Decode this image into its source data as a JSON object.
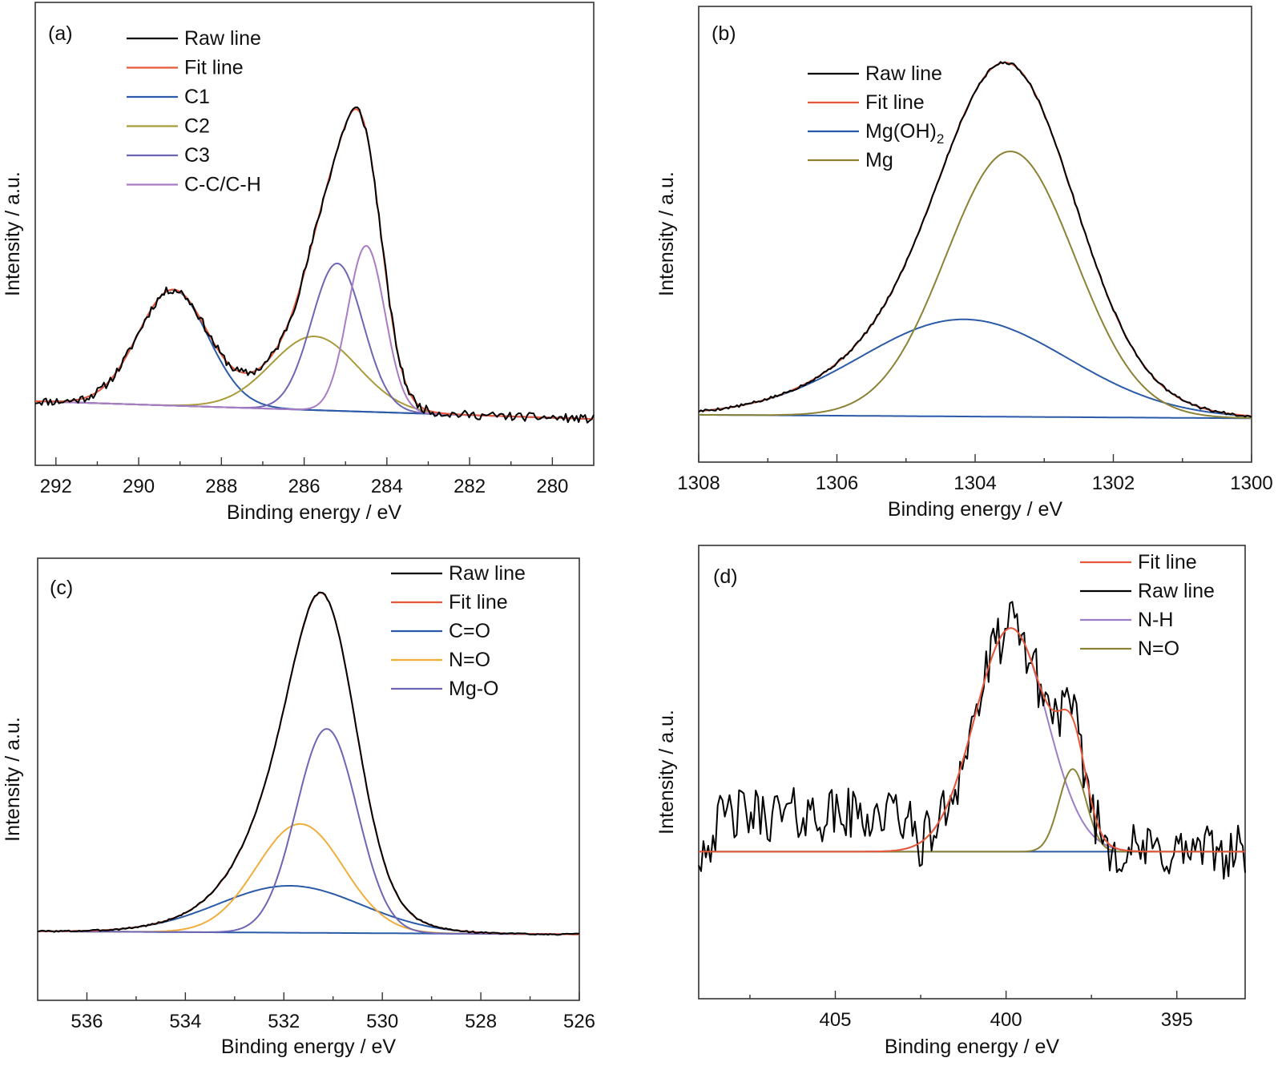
{
  "chart_data": [
    {
      "panel": "(a)",
      "type": "line",
      "xlabel": "Binding energy / eV",
      "ylabel": "Intensity / a.u.",
      "xlim": [
        292.5,
        279.0
      ],
      "ylim": [
        -18,
        112
      ],
      "x_ticks_major": [
        292,
        290,
        288,
        286,
        284,
        282,
        280
      ],
      "x_ticks_minor": [
        291,
        289,
        287,
        285,
        283,
        281
      ],
      "grid": false,
      "legend_placement": "top-left",
      "background": {
        "start": [
          292.5,
          0
        ],
        "end": [
          279.0,
          -5
        ]
      },
      "components": [
        {
          "name": "C1",
          "color": "#2a5aa8",
          "center": 289.17,
          "height": 32.5,
          "sigma": 0.85
        },
        {
          "name": "C2",
          "color": "#a99b3a",
          "center": 285.75,
          "height": 20.7,
          "sigma": 1.05
        },
        {
          "name": "C3",
          "color": "#6e66b4",
          "center": 285.2,
          "height": 41.4,
          "sigma": 0.62
        },
        {
          "name": "C-C/C-H",
          "color": "#a97dc3",
          "center": 284.5,
          "height": 46.6,
          "sigma": 0.45
        }
      ],
      "fit": {
        "name": "Fit line",
        "color": "#e8583a"
      },
      "raw": {
        "name": "Raw line",
        "color": "#000000",
        "noise": 1.2,
        "seed": 11
      },
      "legend": [
        "Raw line",
        "Fit line",
        "C1",
        "C2",
        "C3",
        "C-C/C-H"
      ]
    },
    {
      "panel": "(b)",
      "type": "line",
      "xlabel": "Binding energy / eV",
      "ylabel": "Intensity / a.u.",
      "xlim": [
        1308,
        1300
      ],
      "ylim": [
        -13,
        117
      ],
      "x_ticks_major": [
        1308,
        1306,
        1304,
        1302,
        1300
      ],
      "x_ticks_minor": [
        1307,
        1305,
        1303,
        1301
      ],
      "grid": false,
      "legend_placement": "top-left",
      "background": {
        "start": [
          1308,
          0.5
        ],
        "end": [
          1300,
          -0.5
        ]
      },
      "components": [
        {
          "name": "Mg(OH)2",
          "color": "#2a5aa8",
          "center": 1304.16,
          "height": 27.7,
          "sigma": 1.5
        },
        {
          "name": "Mg",
          "color": "#8b8236",
          "center": 1303.49,
          "height": 75.7,
          "sigma": 0.93
        }
      ],
      "fit": {
        "name": "Fit line",
        "color": "#e8583a"
      },
      "raw": {
        "name": "Raw line",
        "color": "#000000",
        "noise": 0.4,
        "seed": 5
      },
      "legend": [
        "Raw line",
        "Fit line",
        "Mg(OH)2",
        "Mg"
      ]
    },
    {
      "panel": "(c)",
      "type": "line",
      "xlabel": "Binding energy / eV",
      "ylabel": "Intensity / a.u.",
      "xlim": [
        537,
        526
      ],
      "ylim": [
        -20,
        110
      ],
      "x_ticks_major": [
        536,
        534,
        532,
        530,
        528,
        526
      ],
      "x_ticks_minor": [
        535,
        533,
        531,
        529,
        527
      ],
      "grid": false,
      "legend_placement": "top-right",
      "background": {
        "start": [
          537,
          0.3
        ],
        "end": [
          526,
          -0.6
        ]
      },
      "components": [
        {
          "name": "C=O",
          "color": "#2a5aa8",
          "center": 531.88,
          "height": 13.8,
          "sigma": 1.45
        },
        {
          "name": "N=O",
          "color": "#f0ae3c",
          "center": 531.67,
          "height": 32.0,
          "sigma": 0.88
        },
        {
          "name": "Mg-O",
          "color": "#6e66b4",
          "center": 531.13,
          "height": 60.0,
          "sigma": 0.62
        }
      ],
      "fit": {
        "name": "Fit line",
        "color": "#e8583a"
      },
      "raw": {
        "name": "Raw line",
        "color": "#000000",
        "noise": 0.25,
        "seed": 3
      },
      "legend": [
        "Raw line",
        "Fit line",
        "C=O",
        "N=O",
        "Mg-O"
      ]
    },
    {
      "panel": "(d)",
      "type": "line",
      "xlabel": "Binding energy / eV",
      "ylabel": "Intensity / a.u.",
      "xlim": [
        409,
        393
      ],
      "ylim": [
        -48,
        100
      ],
      "x_ticks_major": [
        405,
        400,
        395
      ],
      "x_ticks_minor": [
        407.5,
        402.5,
        397.5
      ],
      "grid": false,
      "legend_placement": "top-right",
      "background": {
        "start": [
          409,
          0
        ],
        "end": [
          393,
          0
        ]
      },
      "components": [
        {
          "name": "N-H",
          "color": "#9b7fc6",
          "center": 399.86,
          "height": 73.0,
          "sigma": 1.05
        },
        {
          "name": "N=O",
          "color": "#8b8236",
          "center": 398.05,
          "height": 27.0,
          "sigma": 0.4
        }
      ],
      "fit": {
        "name": "Fit line",
        "color": "#e8583a"
      },
      "raw": {
        "name": "Raw line",
        "color": "#000000",
        "noise": 9.0,
        "seed": 42,
        "offset_region": {
          "from": 409,
          "to": 402.5,
          "level": 12
        }
      },
      "legend": [
        "Fit line",
        "Raw line",
        "N-H",
        "N=O"
      ],
      "baseline_color": "#2a5aa8"
    }
  ]
}
